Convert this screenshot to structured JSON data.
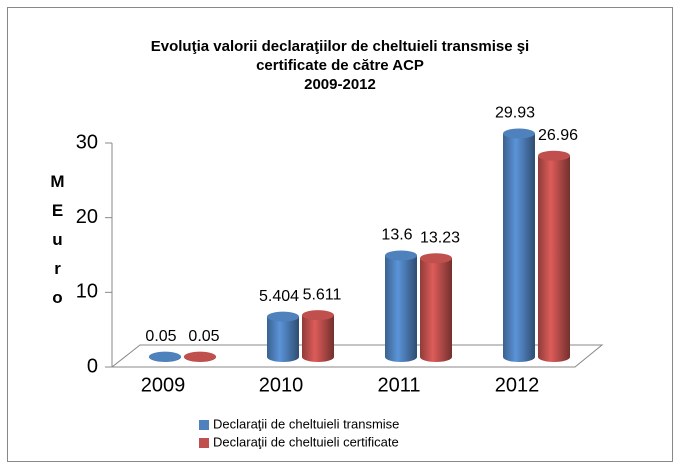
{
  "chart_data": {
    "type": "bar",
    "title": [
      "Evoluţia valorii declaraţiilor de cheltuieli transmise şi",
      "certificate de către ACP",
      "2009-2012"
    ],
    "ylabel": "MEuro",
    "categories": [
      "2009",
      "2010",
      "2011",
      "2012"
    ],
    "series": [
      {
        "name": "Declaraţii de cheltuieli transmise",
        "color": "#4f81bd",
        "values": [
          0.05,
          5.404,
          13.6,
          29.93
        ]
      },
      {
        "name": "Declaraţii de cheltuieli certificate",
        "color": "#c0504d",
        "values": [
          0.05,
          5.611,
          13.23,
          26.96
        ]
      }
    ],
    "ylim": [
      0,
      30
    ],
    "yticks": [
      0,
      10,
      20,
      30
    ],
    "grid": false,
    "legend": "bottom"
  }
}
